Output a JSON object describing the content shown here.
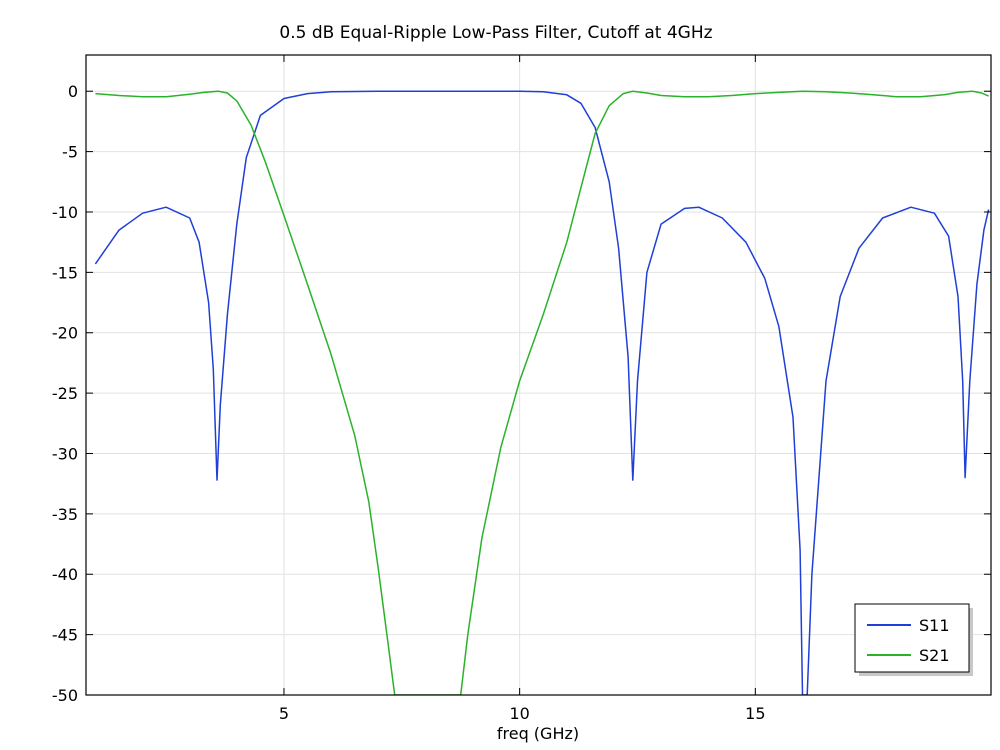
{
  "chart_data": {
    "type": "line",
    "title": "0.5 dB Equal-Ripple Low-Pass Filter, Cutoff at 4GHz",
    "xlabel": "freq (GHz)",
    "ylabel": "",
    "xlim": [
      0.8,
      20
    ],
    "ylim": [
      -50,
      3
    ],
    "xticks": [
      5,
      10,
      15
    ],
    "yticks": [
      0,
      -5,
      -10,
      -15,
      -20,
      -25,
      -30,
      -35,
      -40,
      -45,
      -50
    ],
    "grid": true,
    "legend_position": "bottom-right",
    "series": [
      {
        "name": "S11",
        "color": "#1f3fd6",
        "points": [
          [
            1.0,
            -14.3
          ],
          [
            1.5,
            -11.5
          ],
          [
            2.0,
            -10.1
          ],
          [
            2.5,
            -9.6
          ],
          [
            3.0,
            -10.5
          ],
          [
            3.2,
            -12.5
          ],
          [
            3.4,
            -17.5
          ],
          [
            3.5,
            -23.0
          ],
          [
            3.58,
            -32.2
          ],
          [
            3.65,
            -26.0
          ],
          [
            3.8,
            -18.5
          ],
          [
            4.0,
            -11.0
          ],
          [
            4.2,
            -5.5
          ],
          [
            4.5,
            -2.0
          ],
          [
            5.0,
            -0.6
          ],
          [
            5.5,
            -0.2
          ],
          [
            6.0,
            -0.05
          ],
          [
            7.0,
            0.0
          ],
          [
            8.0,
            0.0
          ],
          [
            9.0,
            0.0
          ],
          [
            10.0,
            0.0
          ],
          [
            10.5,
            -0.05
          ],
          [
            11.0,
            -0.3
          ],
          [
            11.3,
            -1.0
          ],
          [
            11.6,
            -3.0
          ],
          [
            11.9,
            -7.5
          ],
          [
            12.1,
            -13.0
          ],
          [
            12.3,
            -22.0
          ],
          [
            12.4,
            -32.2
          ],
          [
            12.5,
            -24.0
          ],
          [
            12.7,
            -15.0
          ],
          [
            13.0,
            -11.0
          ],
          [
            13.5,
            -9.7
          ],
          [
            13.8,
            -9.6
          ],
          [
            14.3,
            -10.5
          ],
          [
            14.8,
            -12.5
          ],
          [
            15.2,
            -15.5
          ],
          [
            15.5,
            -19.5
          ],
          [
            15.8,
            -27.0
          ],
          [
            15.95,
            -38.0
          ],
          [
            16.0,
            -50.0
          ],
          [
            16.1,
            -50.0
          ],
          [
            16.2,
            -40.0
          ],
          [
            16.5,
            -24.0
          ],
          [
            16.8,
            -17.0
          ],
          [
            17.2,
            -13.0
          ],
          [
            17.7,
            -10.5
          ],
          [
            18.3,
            -9.6
          ],
          [
            18.8,
            -10.1
          ],
          [
            19.1,
            -12.0
          ],
          [
            19.3,
            -17.0
          ],
          [
            19.4,
            -24.0
          ],
          [
            19.45,
            -32.0
          ],
          [
            19.55,
            -24.0
          ],
          [
            19.7,
            -16.0
          ],
          [
            19.85,
            -11.5
          ],
          [
            19.95,
            -9.8
          ]
        ]
      },
      {
        "name": "S21",
        "color": "#2ab32a",
        "points": [
          [
            1.0,
            -0.2
          ],
          [
            1.5,
            -0.35
          ],
          [
            2.0,
            -0.45
          ],
          [
            2.5,
            -0.45
          ],
          [
            3.0,
            -0.25
          ],
          [
            3.3,
            -0.1
          ],
          [
            3.6,
            0.0
          ],
          [
            3.8,
            -0.15
          ],
          [
            4.0,
            -0.8
          ],
          [
            4.3,
            -2.8
          ],
          [
            4.6,
            -5.8
          ],
          [
            5.0,
            -10.3
          ],
          [
            5.5,
            -16.0
          ],
          [
            6.0,
            -21.8
          ],
          [
            6.5,
            -28.5
          ],
          [
            6.8,
            -34.0
          ],
          [
            7.0,
            -39.5
          ],
          [
            7.2,
            -45.5
          ],
          [
            7.35,
            -50.0
          ],
          [
            8.75,
            -50.0
          ],
          [
            8.9,
            -45.0
          ],
          [
            9.2,
            -37.0
          ],
          [
            9.6,
            -29.5
          ],
          [
            10.0,
            -24.0
          ],
          [
            10.5,
            -18.5
          ],
          [
            11.0,
            -12.5
          ],
          [
            11.3,
            -8.0
          ],
          [
            11.6,
            -3.5
          ],
          [
            11.9,
            -1.2
          ],
          [
            12.2,
            -0.2
          ],
          [
            12.4,
            0.0
          ],
          [
            12.7,
            -0.15
          ],
          [
            13.0,
            -0.35
          ],
          [
            13.5,
            -0.45
          ],
          [
            14.0,
            -0.45
          ],
          [
            14.5,
            -0.35
          ],
          [
            15.0,
            -0.2
          ],
          [
            15.5,
            -0.1
          ],
          [
            16.0,
            0.0
          ],
          [
            16.5,
            -0.05
          ],
          [
            17.0,
            -0.15
          ],
          [
            17.5,
            -0.3
          ],
          [
            18.0,
            -0.45
          ],
          [
            18.5,
            -0.45
          ],
          [
            19.0,
            -0.3
          ],
          [
            19.3,
            -0.1
          ],
          [
            19.6,
            0.0
          ],
          [
            19.8,
            -0.15
          ],
          [
            19.95,
            -0.4
          ]
        ]
      }
    ]
  }
}
